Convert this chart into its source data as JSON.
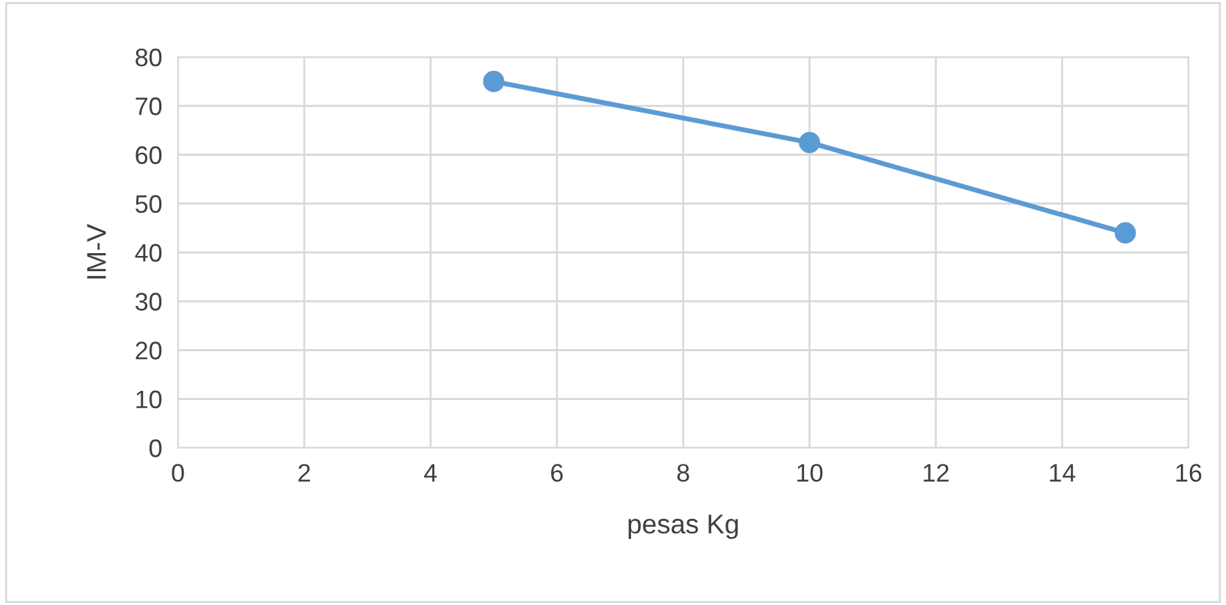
{
  "chart_data": {
    "type": "line",
    "xlabel": "pesas Kg",
    "ylabel": "IM-V",
    "series": [
      {
        "color": "#5b9bd5",
        "x": [
          5,
          10,
          15
        ],
        "values": [
          75,
          62.5,
          44
        ]
      }
    ],
    "xlim": [
      0,
      16
    ],
    "xticks": [
      0,
      2,
      4,
      6,
      8,
      10,
      12,
      14,
      16
    ],
    "ylim": [
      0,
      80
    ],
    "yticks": [
      0,
      10,
      20,
      30,
      40,
      50,
      60,
      70,
      80
    ],
    "grid": true,
    "marker": "circle",
    "line_style": "solid",
    "legend": false
  }
}
